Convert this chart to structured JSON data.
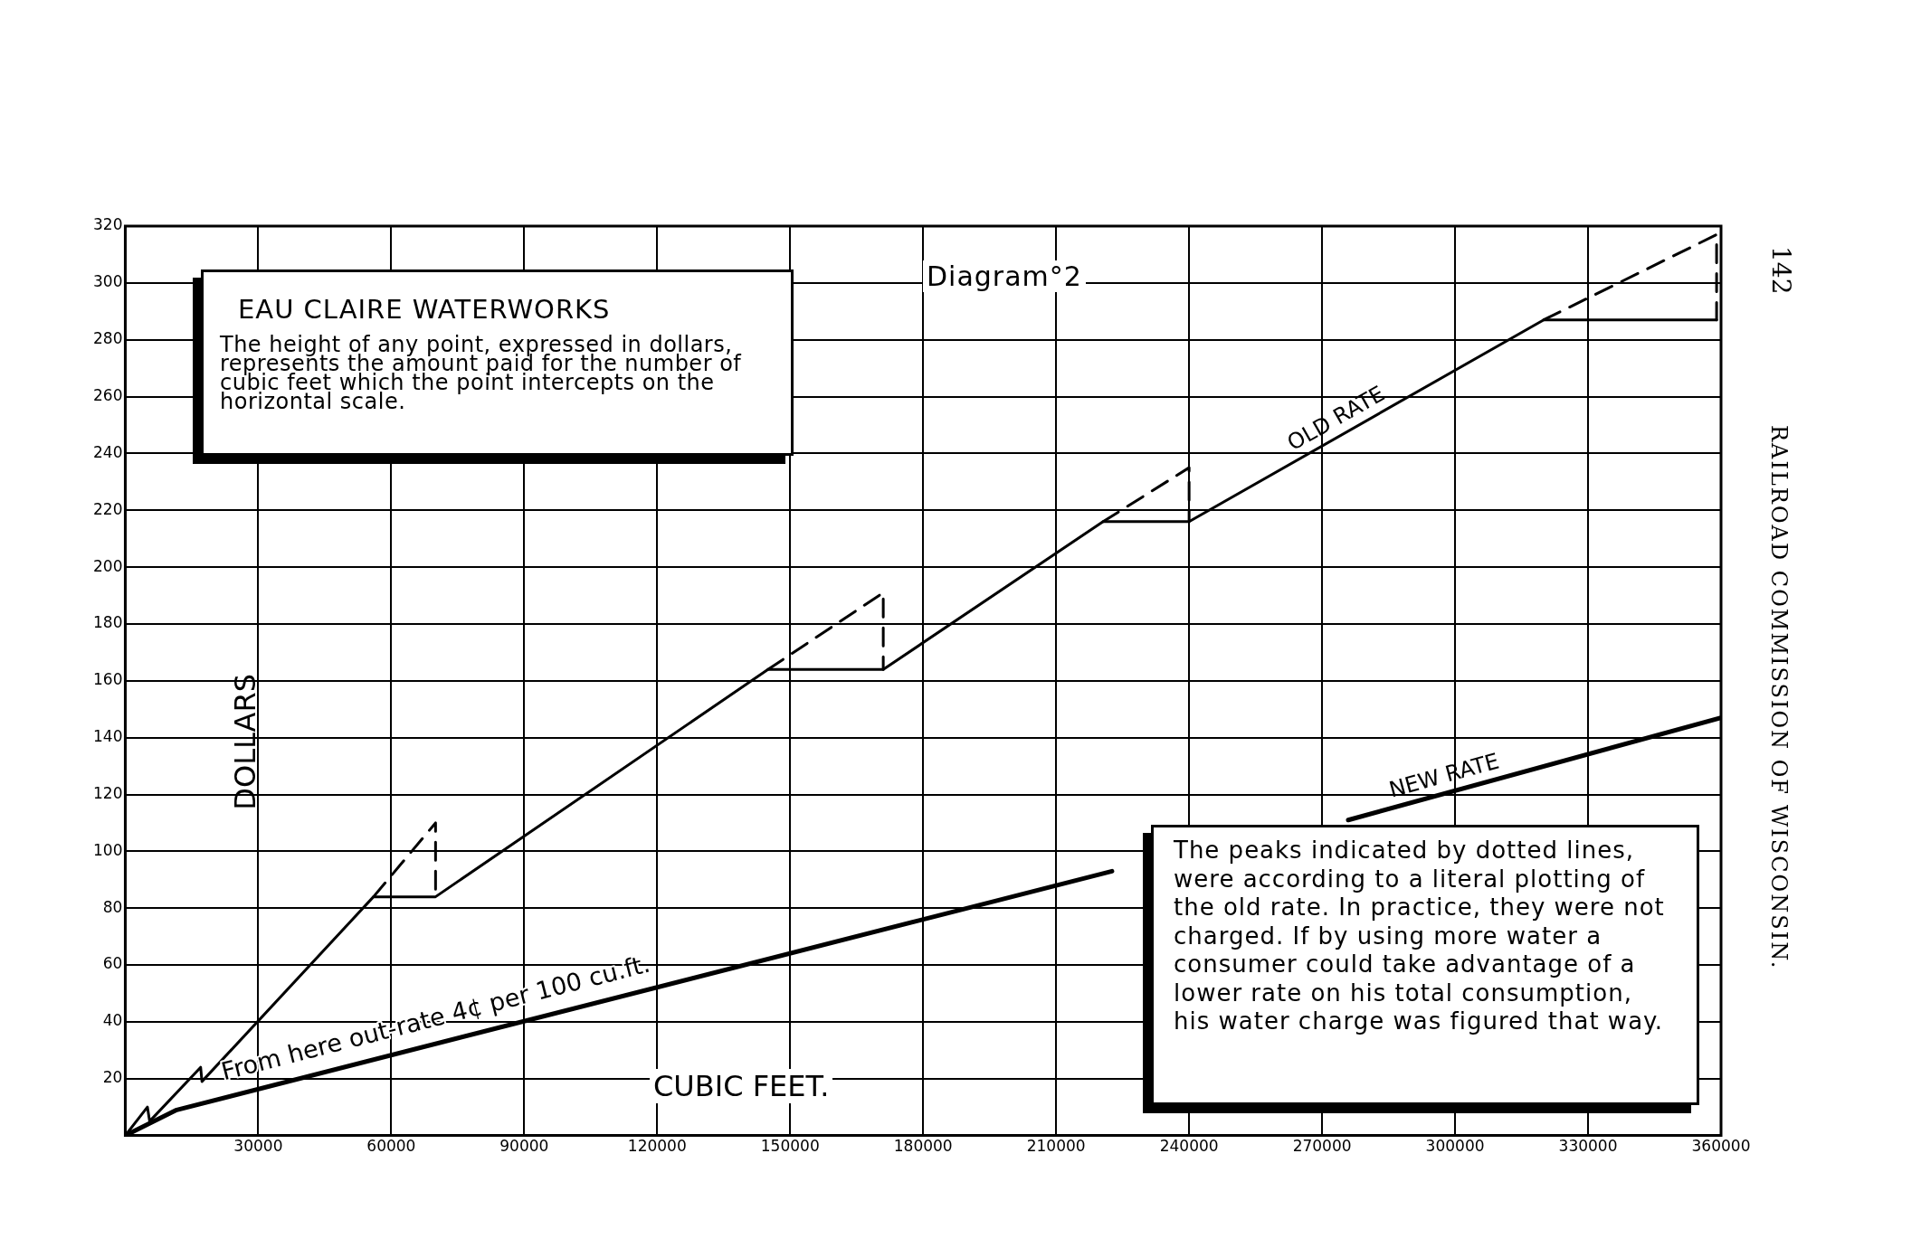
{
  "chart_data": {
    "type": "line",
    "title": "EAU CLAIRE WATERWORKS",
    "subtitle": "The height of any point, expressed in dollars, represents the amount paid for the number of cubic feet which the point intercepts on the horizontal scale.",
    "xlabel": "CUBIC FEET.",
    "ylabel": "DOLLARS",
    "xlim": [
      0,
      360000
    ],
    "xticks": [
      30000,
      60000,
      90000,
      120000,
      150000,
      180000,
      210000,
      240000,
      270000,
      300000,
      330000,
      360000
    ],
    "ylim": [
      0,
      320
    ],
    "yticks": [
      20,
      40,
      60,
      80,
      100,
      120,
      140,
      160,
      180,
      200,
      220,
      240,
      260,
      280,
      300,
      320
    ],
    "grid": true,
    "legend": false,
    "marker": "none",
    "series": [
      {
        "name": "OLD RATE",
        "color": "#000000",
        "x": [
          0,
          5000,
          5500,
          17000,
          17300,
          56000,
          70000,
          145000,
          171000,
          220600,
          240000,
          320000,
          359000
        ],
        "values": [
          0,
          10,
          5,
          24,
          19,
          84,
          84,
          164,
          164,
          216,
          216,
          287,
          287
        ]
      },
      {
        "name": "NEW RATE",
        "color": "#000000",
        "x": [
          0,
          11600,
          222600,
          250000,
          275900,
          360000
        ],
        "values": [
          0,
          9,
          93,
          null,
          111,
          147
        ]
      },
      {
        "color": "#000000",
        "line_style": "dashed",
        "x": [
          56000,
          70000,
          70000,
          100000,
          145000,
          171000,
          171000,
          200000,
          220600,
          240000,
          240000,
          300000,
          320000,
          359000,
          359000
        ],
        "values": [
          84,
          110,
          84,
          null,
          164,
          191,
          164,
          null,
          216,
          235,
          216,
          null,
          287,
          317,
          287
        ]
      }
    ],
    "annotations": [
      "Diagram°2",
      "The peaks indicated by dotted lines, were according to a literal plotting of the old rate. In practice, they were not charged. If by using more water a consumer could take advantage of a lower rate on his total consumption, his water charge was figured that way.",
      "142",
      "RAILROAD COMMISSION OF WISCONSIN.",
      {
        "text": "From here out-rate 4¢ per 100 cu.ft.",
        "x": 23000,
        "y": 15
      }
    ]
  }
}
